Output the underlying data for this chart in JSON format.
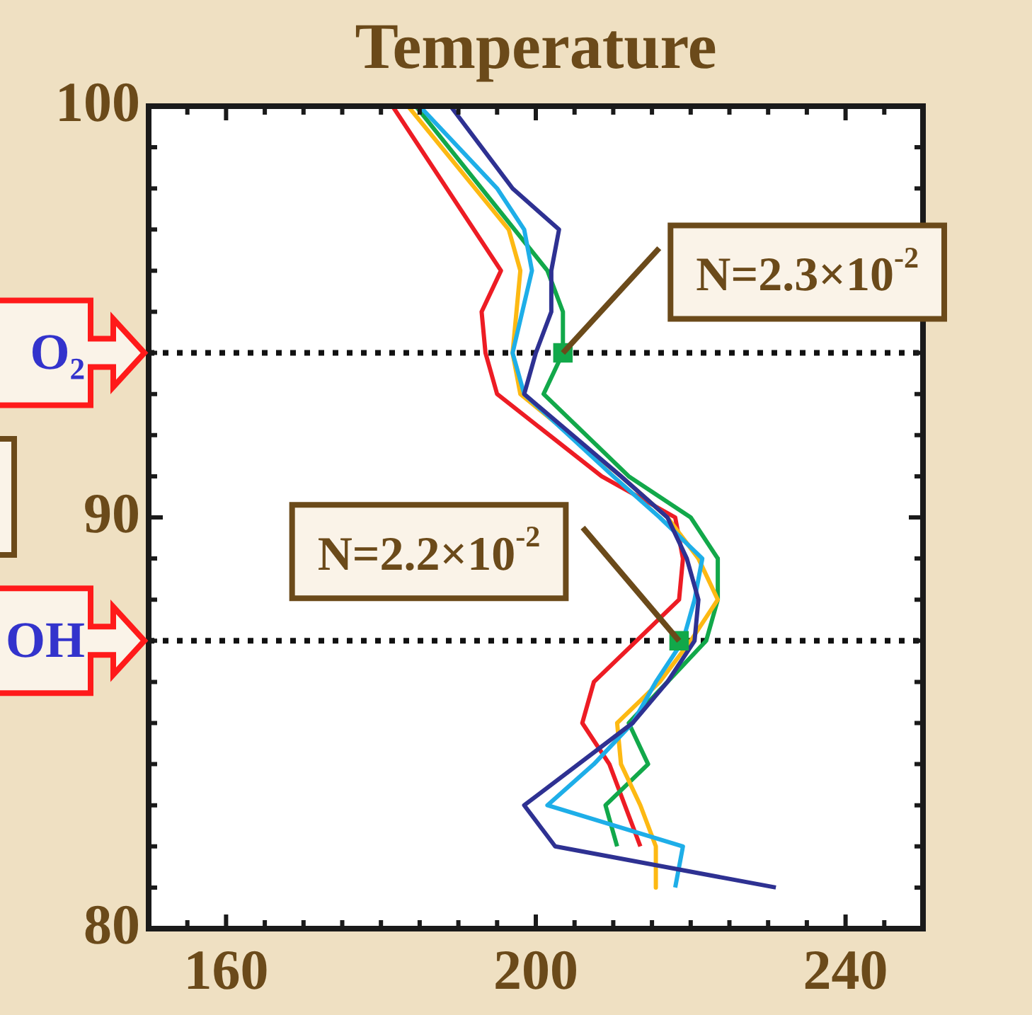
{
  "chart_data": {
    "type": "line",
    "title": "Temperature",
    "xlim": [
      150,
      250
    ],
    "xticks": [
      {
        "value": 155,
        "label": null
      },
      160,
      {
        "value": 165,
        "label": null
      },
      {
        "value": 170,
        "label": null
      },
      {
        "value": 175,
        "label": null
      },
      {
        "value": 180,
        "label": null
      },
      {
        "value": 185,
        "label": null
      },
      {
        "value": 190,
        "label": null
      },
      {
        "value": 195,
        "label": null
      },
      200,
      {
        "value": 205,
        "label": null
      },
      {
        "value": 210,
        "label": null
      },
      {
        "value": 215,
        "label": null
      },
      {
        "value": 220,
        "label": null
      },
      {
        "value": 225,
        "label": null
      },
      {
        "value": 230,
        "label": null
      },
      {
        "value": 235,
        "label": null
      },
      240,
      {
        "value": 245,
        "label": null
      }
    ],
    "ylim": [
      80,
      100
    ],
    "yticks": [
      80,
      {
        "value": 81,
        "label": null
      },
      {
        "value": 82,
        "label": null
      },
      {
        "value": 83,
        "label": null
      },
      {
        "value": 84,
        "label": null
      },
      {
        "value": 85,
        "label": null
      },
      {
        "value": 86,
        "label": null
      },
      {
        "value": 87,
        "label": null
      },
      {
        "value": 88,
        "label": null
      },
      {
        "value": 89,
        "label": null
      },
      90,
      {
        "value": 91,
        "label": null
      },
      {
        "value": 92,
        "label": null
      },
      {
        "value": 93,
        "label": null
      },
      {
        "value": 94,
        "label": null
      },
      {
        "value": 95,
        "label": null
      },
      {
        "value": 96,
        "label": null
      },
      {
        "value": 97,
        "label": null
      },
      {
        "value": 98,
        "label": null
      },
      {
        "value": 99,
        "label": null
      },
      100
    ],
    "series": [
      {
        "type": "line",
        "color": "#2e3192",
        "marker": "none",
        "x": [
          189,
          197,
          203,
          202,
          202,
          200,
          198.5,
          211,
          217,
          219.5,
          221,
          220.5,
          217,
          212.5,
          198.5,
          202.5,
          231
        ],
        "values": [
          100,
          98,
          97,
          96,
          95,
          94,
          93,
          91,
          90,
          89,
          88,
          87,
          86,
          85,
          83,
          82,
          81
        ]
      },
      {
        "type": "line",
        "color": "#1eaee8",
        "marker": "none",
        "x": [
          185,
          195,
          198.5,
          199.5,
          197,
          198.5,
          210,
          216,
          221.5,
          220.5,
          219,
          215.5,
          212.5,
          207.5,
          201.5,
          219,
          218
        ],
        "values": [
          100,
          98,
          97,
          96,
          94,
          93,
          91,
          90,
          89,
          88,
          87,
          86,
          85,
          84,
          83,
          82,
          81
        ]
      },
      {
        "type": "line",
        "color": "#fdb913",
        "marker": "none",
        "x": [
          183.5,
          196.5,
          198,
          197,
          198,
          211,
          217,
          221,
          223.5,
          220,
          216,
          210.5,
          211,
          213.5,
          215.5,
          215.5
        ],
        "values": [
          100,
          97,
          96,
          94,
          93,
          91,
          90,
          89,
          88,
          87,
          86,
          85,
          84,
          83,
          82,
          81
        ]
      },
      {
        "type": "line",
        "color": "#12a84a",
        "marker": "none",
        "x": [
          184.5,
          201.5,
          203.5,
          203.5,
          201,
          212,
          220,
          223.5,
          223.5,
          222,
          217,
          212,
          214.5,
          209,
          210.5
        ],
        "values": [
          100,
          96,
          95,
          94,
          93,
          91,
          90,
          89,
          88,
          87,
          86,
          85,
          84,
          83,
          82
        ]
      },
      {
        "type": "line",
        "color": "#ed1c24",
        "marker": "none",
        "x": [
          181.5,
          195.5,
          193,
          193.5,
          195,
          208.5,
          218,
          219,
          218.5,
          213,
          207.5,
          206,
          209.5,
          211.5,
          213.5
        ],
        "values": [
          100,
          96,
          95,
          94,
          93,
          91,
          90,
          89,
          88,
          87,
          86,
          85,
          84,
          83,
          82
        ]
      },
      {
        "type": "scatter",
        "color": "#12a84a",
        "marker": "square",
        "x": [
          203.5,
          218.5
        ],
        "values": [
          94,
          87
        ]
      }
    ],
    "ref_lines": [
      {
        "axis": "y",
        "value": 94,
        "label": "O₂",
        "color": "#111111",
        "line_style": "dotted"
      },
      {
        "axis": "y",
        "value": 87,
        "label": "OH",
        "color": "#111111",
        "line_style": "dotted"
      }
    ],
    "annotations": [
      {
        "text": "N=2.3×10$^{-2}$",
        "x": 203.5,
        "y": 94
      },
      {
        "text": "N=2.2×10$^{-2}$",
        "x": 218.5,
        "y": 87
      }
    ]
  }
}
